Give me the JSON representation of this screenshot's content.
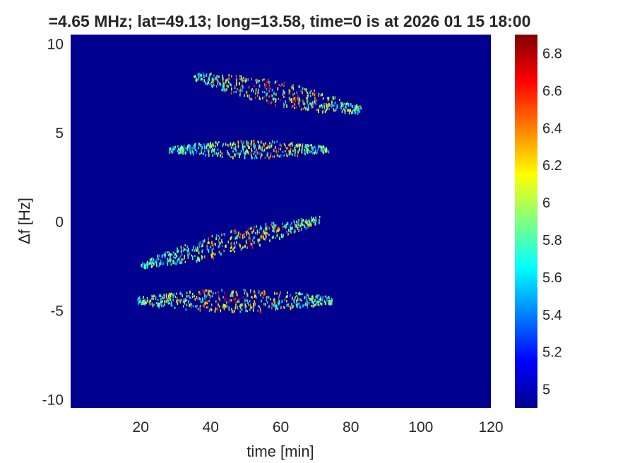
{
  "chart_data": {
    "type": "heatmap",
    "title": "=4.65 MHz;  lat=49.13; long=13.58, time=0 is at 2026 01 15 18:00",
    "xlabel": "time [min]",
    "ylabel": "Δf [Hz]",
    "xlim": [
      0,
      120
    ],
    "ylim": [
      -10.5,
      10.5
    ],
    "xticks": [
      "20",
      "40",
      "60",
      "80",
      "100",
      "120"
    ],
    "yticks": [
      "10",
      "5",
      "0",
      "-5",
      "-10"
    ],
    "colorbar": {
      "colormap": "jet",
      "clim": [
        4.9,
        6.9
      ],
      "ticks": [
        "6.8",
        "6.6",
        "6.4",
        "6.2",
        "6",
        "5.8",
        "5.6",
        "5.4",
        "5.2",
        "5"
      ]
    },
    "background_value": 4.9,
    "background_color": "#00008f",
    "grid": false,
    "series": [
      {
        "x_start": 35,
        "x_end": 83,
        "center_y": 7.3,
        "slope": -0.004,
        "width": 0.5,
        "peak": 6.9,
        "peak_x": 58
      },
      {
        "x_start": 28,
        "x_end": 74,
        "center_y": 4.1,
        "slope": 0.0,
        "width": 0.35,
        "peak": 6.7,
        "peak_x": 55
      },
      {
        "x_start": 20,
        "x_end": 71,
        "center_y": -0.9,
        "slope": 0.005,
        "width": 0.45,
        "peak": 6.8,
        "peak_x": 50
      },
      {
        "x_start": 19,
        "x_end": 75,
        "center_y": -4.4,
        "slope": 0.0,
        "width": 0.45,
        "peak": 6.9,
        "peak_x": 45
      }
    ]
  }
}
